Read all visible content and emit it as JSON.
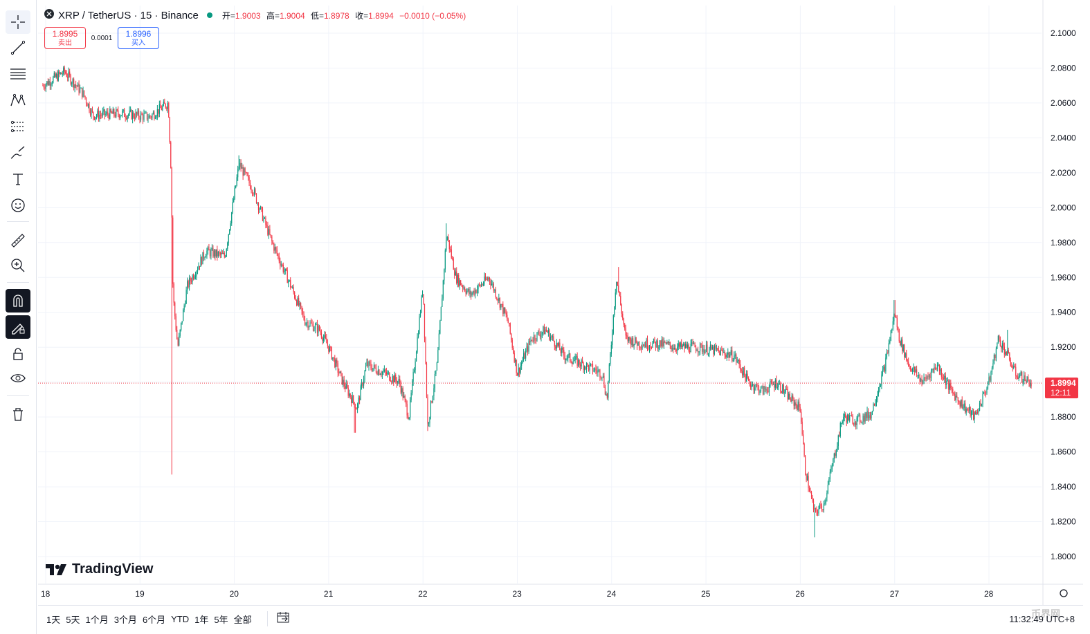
{
  "legend": {
    "symbol": "XRP / TetherUS · 15 · Binance",
    "open_label": "开=",
    "open": "1.9003",
    "high_label": "高=",
    "high": "1.9004",
    "low_label": "低=",
    "low": "1.8978",
    "close_label": "收=",
    "close": "1.8994",
    "change": "−0.0010 (−0.05%)"
  },
  "trade": {
    "sell_price": "1.8995",
    "sell_label": "卖出",
    "spread": "0.0001",
    "buy_price": "1.8996",
    "buy_label": "买入"
  },
  "brand": "TradingView",
  "price_tag": {
    "price": "1.8994",
    "countdown": "12:11"
  },
  "ranges": [
    "1天",
    "5天",
    "1个月",
    "3个月",
    "6个月",
    "YTD",
    "1年",
    "5年",
    "全部"
  ],
  "clock": "11:32:49 UTC+8",
  "watermark": "币界网",
  "colors": {
    "up": "#089981",
    "down": "#f23645",
    "grid": "#f0f3fa",
    "last": "#f23645"
  },
  "toolbar_icons": [
    "crosshair-icon",
    "trend-line-icon",
    "fib-icon",
    "pattern-icon",
    "prediction-icon",
    "brush-icon",
    "text-icon",
    "emoji-icon",
    "ruler-icon",
    "zoom-in-icon",
    "magnet-icon",
    "lock-drawings-icon",
    "lock-icon",
    "eye-icon",
    "trash-icon"
  ],
  "chart_data": {
    "type": "candlestick",
    "title": "XRP / TetherUS · 15 · Binance",
    "x_ticks": [
      "18",
      "19",
      "20",
      "21",
      "22",
      "23",
      "24",
      "25",
      "26",
      "27",
      "28"
    ],
    "y_ticks": [
      "2.1000",
      "2.0800",
      "2.0600",
      "2.0400",
      "2.0200",
      "2.0000",
      "1.9800",
      "1.9600",
      "1.9400",
      "1.9200",
      "1.9000",
      "1.8800",
      "1.8600",
      "1.8400",
      "1.8200",
      "1.8000"
    ],
    "ylim": [
      1.79,
      2.105
    ],
    "last_price": 1.8994,
    "grid": true,
    "series_close_path": [
      {
        "day": 17.97,
        "price": 2.07
      },
      {
        "day": 18.2,
        "price": 2.078
      },
      {
        "day": 18.4,
        "price": 2.065
      },
      {
        "day": 18.5,
        "price": 2.053
      },
      {
        "day": 18.8,
        "price": 2.054
      },
      {
        "day": 19.1,
        "price": 2.052
      },
      {
        "day": 19.3,
        "price": 2.06
      },
      {
        "day": 19.33,
        "price": 2.02
      },
      {
        "day": 19.35,
        "price": 1.95
      },
      {
        "day": 19.4,
        "price": 1.92
      },
      {
        "day": 19.5,
        "price": 1.955
      },
      {
        "day": 19.7,
        "price": 1.975
      },
      {
        "day": 19.9,
        "price": 1.972
      },
      {
        "day": 20.05,
        "price": 2.025
      },
      {
        "day": 20.2,
        "price": 2.01
      },
      {
        "day": 20.4,
        "price": 1.98
      },
      {
        "day": 20.6,
        "price": 1.955
      },
      {
        "day": 20.75,
        "price": 1.935
      },
      {
        "day": 20.9,
        "price": 1.93
      },
      {
        "day": 21.0,
        "price": 1.92
      },
      {
        "day": 21.15,
        "price": 1.9
      },
      {
        "day": 21.3,
        "price": 1.885
      },
      {
        "day": 21.4,
        "price": 1.91
      },
      {
        "day": 21.6,
        "price": 1.905
      },
      {
        "day": 21.75,
        "price": 1.9
      },
      {
        "day": 21.85,
        "price": 1.88
      },
      {
        "day": 22.0,
        "price": 1.955
      },
      {
        "day": 22.05,
        "price": 1.875
      },
      {
        "day": 22.15,
        "price": 1.91
      },
      {
        "day": 22.25,
        "price": 1.985
      },
      {
        "day": 22.35,
        "price": 1.96
      },
      {
        "day": 22.5,
        "price": 1.95
      },
      {
        "day": 22.7,
        "price": 1.96
      },
      {
        "day": 22.9,
        "price": 1.935
      },
      {
        "day": 23.0,
        "price": 1.905
      },
      {
        "day": 23.15,
        "price": 1.925
      },
      {
        "day": 23.3,
        "price": 1.93
      },
      {
        "day": 23.5,
        "price": 1.915
      },
      {
        "day": 23.7,
        "price": 1.91
      },
      {
        "day": 23.9,
        "price": 1.905
      },
      {
        "day": 23.95,
        "price": 1.89
      },
      {
        "day": 24.05,
        "price": 1.96
      },
      {
        "day": 24.15,
        "price": 1.925
      },
      {
        "day": 24.3,
        "price": 1.922
      },
      {
        "day": 24.5,
        "price": 1.922
      },
      {
        "day": 24.7,
        "price": 1.92
      },
      {
        "day": 24.9,
        "price": 1.92
      },
      {
        "day": 25.1,
        "price": 1.918
      },
      {
        "day": 25.3,
        "price": 1.915
      },
      {
        "day": 25.45,
        "price": 1.9
      },
      {
        "day": 25.6,
        "price": 1.895
      },
      {
        "day": 25.75,
        "price": 1.9
      },
      {
        "day": 25.9,
        "price": 1.89
      },
      {
        "day": 26.0,
        "price": 1.885
      },
      {
        "day": 26.05,
        "price": 1.85
      },
      {
        "day": 26.15,
        "price": 1.825
      },
      {
        "day": 26.25,
        "price": 1.83
      },
      {
        "day": 26.35,
        "price": 1.855
      },
      {
        "day": 26.45,
        "price": 1.88
      },
      {
        "day": 26.6,
        "price": 1.878
      },
      {
        "day": 26.75,
        "price": 1.882
      },
      {
        "day": 26.9,
        "price": 1.91
      },
      {
        "day": 27.0,
        "price": 1.94
      },
      {
        "day": 27.05,
        "price": 1.925
      },
      {
        "day": 27.15,
        "price": 1.91
      },
      {
        "day": 27.3,
        "price": 1.9
      },
      {
        "day": 27.45,
        "price": 1.91
      },
      {
        "day": 27.6,
        "price": 1.895
      },
      {
        "day": 27.75,
        "price": 1.885
      },
      {
        "day": 27.85,
        "price": 1.88
      },
      {
        "day": 28.0,
        "price": 1.9
      },
      {
        "day": 28.1,
        "price": 1.925
      },
      {
        "day": 28.2,
        "price": 1.915
      },
      {
        "day": 28.28,
        "price": 1.905
      },
      {
        "day": 28.45,
        "price": 1.8994
      }
    ],
    "spikes": [
      {
        "day": 19.34,
        "low": 1.847
      },
      {
        "day": 21.28,
        "low": 1.871
      },
      {
        "day": 22.05,
        "low": 1.872
      },
      {
        "day": 22.25,
        "high": 1.991
      },
      {
        "day": 20.05,
        "high": 2.03
      },
      {
        "day": 24.07,
        "high": 1.966
      },
      {
        "day": 26.15,
        "low": 1.811
      },
      {
        "day": 27.0,
        "high": 1.947
      },
      {
        "day": 28.2,
        "high": 1.93
      }
    ]
  }
}
